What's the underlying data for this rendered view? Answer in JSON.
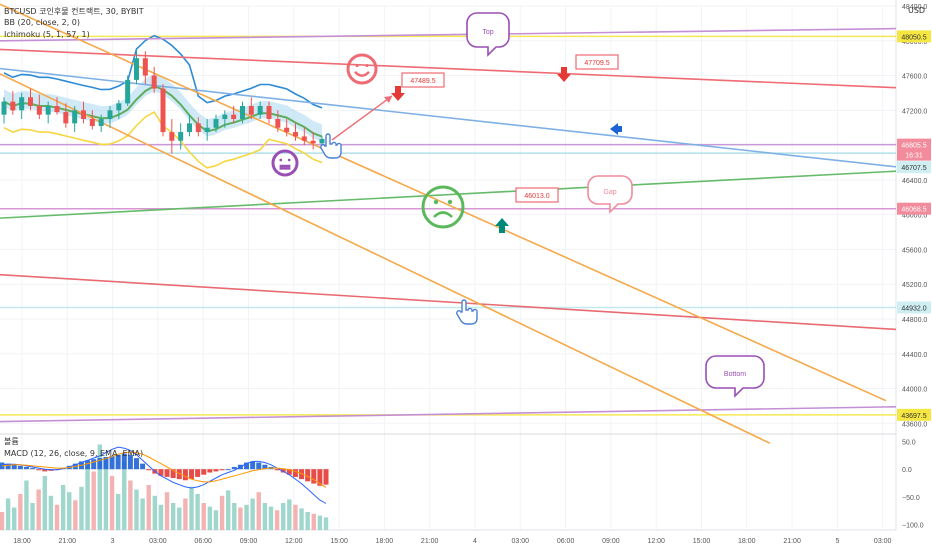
{
  "header": {
    "symbol_line": "BTCUSD 코인후물 컨트랙트, 30, BYBIT",
    "bb_line": "BB (20, close, 2, 0)",
    "ichimoku_line": "Ichimoku (5, 1, 57, 1)",
    "volume_label": "볼륨",
    "macd_line": "MACD (12, 26, close, 9, EMA, EMA)",
    "currency": "USD"
  },
  "chart_data": {
    "type": "line",
    "price_axis": {
      "ylim": [
        43500,
        48400
      ],
      "ticks": [
        48400,
        48000,
        47600,
        47200,
        46800,
        46400,
        46000,
        45600,
        45200,
        44800,
        44400,
        44000,
        43600
      ],
      "tick_labels": [
        "48400.0",
        "48000.0",
        "47600.0",
        "47200.0",
        "46800.0",
        "46400.0",
        "46000.0",
        "45600.0",
        "45200.0",
        "44800.0",
        "44400.0",
        "44000.0",
        "43600.0"
      ]
    },
    "macd_axis": {
      "ylim": [
        -110,
        60
      ],
      "ticks": [
        50,
        0,
        -50,
        -100
      ],
      "tick_labels": [
        "50.0",
        "0.0",
        "−50.0",
        "−100.0"
      ]
    },
    "x_tick_labels": [
      "18:00",
      "21:00",
      "3",
      "03:00",
      "06:00",
      "09:00",
      "12:00",
      "15:00",
      "18:00",
      "21:00",
      "4",
      "03:00",
      "06:00",
      "09:00",
      "12:00",
      "15:00",
      "18:00",
      "21:00",
      "5",
      "03:00"
    ],
    "price_badges": [
      {
        "label": "48050.5",
        "value": 48050.5,
        "color": "#f5e642"
      },
      {
        "label": "46805.5",
        "value": 46805.5,
        "color": "#f28b9b"
      },
      {
        "label": "16:31",
        "value": 46805.5,
        "color": "#f28b9b"
      },
      {
        "label": "46707.5",
        "value": 46707.5,
        "color": "#cfeef2"
      },
      {
        "label": "46068.5",
        "value": 46068.5,
        "color": "#f28b9b"
      },
      {
        "label": "44932.0",
        "value": 44932.0,
        "color": "#cfeef2"
      },
      {
        "label": "43697.5",
        "value": 43697.5,
        "color": "#f5e642"
      }
    ],
    "trend_lines": [
      {
        "color": "#ef6b73",
        "from": [
          0,
          47900
        ],
        "to": [
          896,
          47460
        ]
      },
      {
        "color": "#7fb0e5",
        "from": [
          0,
          47680
        ],
        "to": [
          896,
          46550
        ]
      },
      {
        "color": "#66bb6a",
        "from": [
          0,
          45960
        ],
        "to": [
          896,
          46500
        ]
      },
      {
        "color": "#e96b72",
        "from": [
          0,
          45310
        ],
        "to": [
          896,
          44680
        ]
      },
      {
        "color": "#c58fd6",
        "from": [
          0,
          48000
        ],
        "to": [
          896,
          48140
        ]
      },
      {
        "color": "#c58fd6",
        "from": [
          0,
          43620
        ],
        "to": [
          896,
          43790
        ]
      },
      {
        "color": "#f5a94b",
        "from": [
          0,
          48420
        ],
        "to": [
          886,
          43860
        ]
      },
      {
        "color": "#f5a94b",
        "from": [
          0,
          47620
        ],
        "to": [
          770,
          43370
        ]
      }
    ],
    "horizontal_lines": [
      {
        "value": 48050.5,
        "color": "#f5e642"
      },
      {
        "value": 46805.5,
        "color": "#c58fd6"
      },
      {
        "value": 46707.5,
        "color": "#a8dde6"
      },
      {
        "value": 46068.5,
        "color": "#d58bd0"
      },
      {
        "value": 44932.0,
        "color": "#bde7ee"
      },
      {
        "value": 43697.5,
        "color": "#f5e642"
      }
    ],
    "annotations": [
      {
        "label": "Top",
        "type": "callout"
      },
      {
        "label": "Bottom",
        "type": "callout"
      },
      {
        "label": "Gap",
        "type": "callout"
      },
      {
        "label": "47489.5",
        "value": 47489.5,
        "type": "price-note"
      },
      {
        "label": "47709.5",
        "value": 47709.5,
        "type": "price-note"
      },
      {
        "label": "46013.0",
        "value": 46013.0,
        "type": "price-note"
      }
    ],
    "candles": [
      {
        "o": 47150,
        "h": 47350,
        "l": 47050,
        "c": 47300
      },
      {
        "o": 47300,
        "h": 47420,
        "l": 47150,
        "c": 47200
      },
      {
        "o": 47200,
        "h": 47400,
        "l": 47100,
        "c": 47350
      },
      {
        "o": 47350,
        "h": 47450,
        "l": 47200,
        "c": 47250
      },
      {
        "o": 47250,
        "h": 47380,
        "l": 47100,
        "c": 47150
      },
      {
        "o": 47150,
        "h": 47300,
        "l": 47050,
        "c": 47250
      },
      {
        "o": 47250,
        "h": 47350,
        "l": 47150,
        "c": 47180
      },
      {
        "o": 47180,
        "h": 47280,
        "l": 47000,
        "c": 47050
      },
      {
        "o": 47050,
        "h": 47250,
        "l": 46950,
        "c": 47200
      },
      {
        "o": 47200,
        "h": 47300,
        "l": 47050,
        "c": 47100
      },
      {
        "o": 47100,
        "h": 47200,
        "l": 46980,
        "c": 47020
      },
      {
        "o": 47020,
        "h": 47150,
        "l": 46950,
        "c": 47100
      },
      {
        "o": 47100,
        "h": 47250,
        "l": 47000,
        "c": 47200
      },
      {
        "o": 47200,
        "h": 47320,
        "l": 47100,
        "c": 47280
      },
      {
        "o": 47280,
        "h": 47600,
        "l": 47250,
        "c": 47550
      },
      {
        "o": 47550,
        "h": 47900,
        "l": 47500,
        "c": 47800
      },
      {
        "o": 47800,
        "h": 47880,
        "l": 47500,
        "c": 47600
      },
      {
        "o": 47600,
        "h": 47700,
        "l": 47400,
        "c": 47450
      },
      {
        "o": 47450,
        "h": 47500,
        "l": 46900,
        "c": 46950
      },
      {
        "o": 46950,
        "h": 47100,
        "l": 46700,
        "c": 46850
      },
      {
        "o": 46850,
        "h": 47050,
        "l": 46750,
        "c": 46950
      },
      {
        "o": 46950,
        "h": 47150,
        "l": 46900,
        "c": 47050
      },
      {
        "o": 47050,
        "h": 47120,
        "l": 46900,
        "c": 46950
      },
      {
        "o": 46950,
        "h": 47100,
        "l": 46850,
        "c": 47000
      },
      {
        "o": 47000,
        "h": 47150,
        "l": 46950,
        "c": 47100
      },
      {
        "o": 47100,
        "h": 47200,
        "l": 47000,
        "c": 47150
      },
      {
        "o": 47150,
        "h": 47250,
        "l": 47050,
        "c": 47100
      },
      {
        "o": 47100,
        "h": 47300,
        "l": 47050,
        "c": 47250
      },
      {
        "o": 47250,
        "h": 47350,
        "l": 47100,
        "c": 47150
      },
      {
        "o": 47150,
        "h": 47300,
        "l": 47100,
        "c": 47250
      },
      {
        "o": 47250,
        "h": 47300,
        "l": 47050,
        "c": 47100
      },
      {
        "o": 47100,
        "h": 47200,
        "l": 46950,
        "c": 47000
      },
      {
        "o": 47000,
        "h": 47100,
        "l": 46900,
        "c": 46950
      },
      {
        "o": 46950,
        "h": 47050,
        "l": 46850,
        "c": 46900
      },
      {
        "o": 46900,
        "h": 47000,
        "l": 46800,
        "c": 46850
      },
      {
        "o": 46850,
        "h": 46950,
        "l": 46750,
        "c": 46820
      },
      {
        "o": 46820,
        "h": 46900,
        "l": 46780,
        "c": 46870
      }
    ],
    "macd": {
      "hist": [
        12,
        10,
        8,
        6,
        4,
        2,
        -2,
        -4,
        -3,
        -1,
        2,
        6,
        10,
        14,
        16,
        18,
        20,
        22,
        24,
        26,
        28,
        26,
        20,
        10,
        -2,
        -8,
        -12,
        -14,
        -16,
        -18,
        -20,
        -18,
        -14,
        -10,
        -6,
        -4,
        -2,
        0,
        4,
        8,
        12,
        14,
        12,
        8,
        4,
        -2,
        -6,
        -10,
        -14,
        -18,
        -22,
        -26,
        -30,
        -28
      ],
      "macd": [
        8,
        9,
        9,
        8,
        6,
        4,
        2,
        0,
        -1,
        -1,
        1,
        4,
        8,
        12,
        16,
        20,
        24,
        30,
        36,
        40,
        38,
        34,
        26,
        16,
        6,
        -4,
        -12,
        -18,
        -24,
        -28,
        -32,
        -34,
        -32,
        -28,
        -22,
        -16,
        -10,
        -6,
        -2,
        4,
        10,
        14,
        14,
        12,
        8,
        2,
        -4,
        -10,
        -18,
        -26,
        -36,
        -46,
        -56,
        -62
      ],
      "signal": [
        6,
        7,
        8,
        8,
        7,
        6,
        5,
        4,
        3,
        2,
        2,
        3,
        5,
        7,
        10,
        13,
        16,
        19,
        23,
        27,
        30,
        31,
        30,
        27,
        22,
        16,
        10,
        4,
        -2,
        -8,
        -13,
        -18,
        -21,
        -23,
        -23,
        -21,
        -18,
        -15,
        -12,
        -9,
        -6,
        -3,
        -1,
        1,
        2,
        2,
        1,
        -1,
        -4,
        -8,
        -13,
        -19,
        -26,
        -33
      ],
      "volume": [
        20,
        35,
        25,
        40,
        55,
        30,
        45,
        60,
        38,
        28,
        50,
        42,
        33,
        48,
        70,
        65,
        95,
        80,
        60,
        40,
        75,
        55,
        45,
        35,
        50,
        38,
        28,
        42,
        30,
        25,
        35,
        48,
        40,
        30,
        26,
        22,
        38,
        44,
        30,
        25,
        28,
        35,
        42,
        30,
        26,
        22,
        30,
        34,
        28,
        24,
        20,
        18,
        16,
        14
      ]
    }
  }
}
